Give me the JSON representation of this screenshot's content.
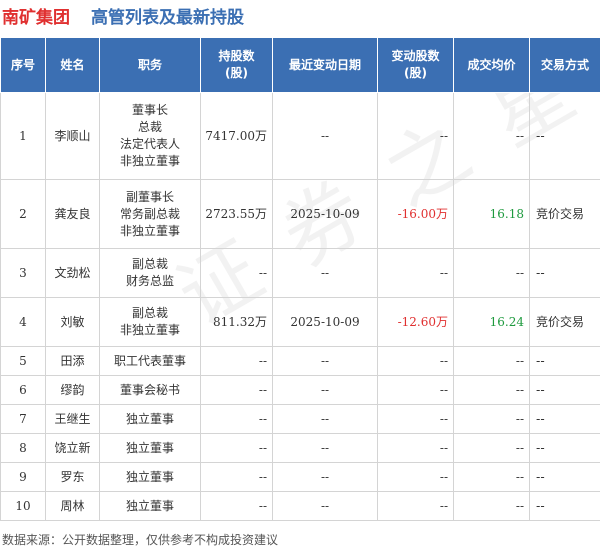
{
  "header": {
    "company": "南矿集团",
    "subtitle": "高管列表及最新持股",
    "company_color": "#e03030",
    "subtitle_color": "#3b6fb3"
  },
  "table": {
    "columns": [
      "序号",
      "姓名",
      "职务",
      "持股数\n(股)",
      "最近变动日期",
      "变动股数\n(股)",
      "成交均价",
      "交易方式"
    ],
    "rows": [
      {
        "no": "1",
        "name": "李顺山",
        "roles": [
          "董事长",
          "总裁",
          "法定代表人",
          "非独立董事"
        ],
        "shares": "7417.00万",
        "date": "--",
        "change": "--",
        "price": "--",
        "method": "--"
      },
      {
        "no": "2",
        "name": "龚友良",
        "roles": [
          "副董事长",
          "常务副总裁",
          "非独立董事"
        ],
        "shares": "2723.55万",
        "date": "2025-10-09",
        "change": "-16.00万",
        "price": "16.18",
        "method": "竞价交易"
      },
      {
        "no": "3",
        "name": "文劲松",
        "roles": [
          "副总裁",
          "财务总监"
        ],
        "shares": "--",
        "date": "--",
        "change": "--",
        "price": "--",
        "method": "--"
      },
      {
        "no": "4",
        "name": "刘敏",
        "roles": [
          "副总裁",
          "非独立董事"
        ],
        "shares": "811.32万",
        "date": "2025-10-09",
        "change": "-12.60万",
        "price": "16.24",
        "method": "竞价交易"
      },
      {
        "no": "5",
        "name": "田添",
        "roles": [
          "职工代表董事"
        ],
        "shares": "--",
        "date": "--",
        "change": "--",
        "price": "--",
        "method": "--"
      },
      {
        "no": "6",
        "name": "缪韵",
        "roles": [
          "董事会秘书"
        ],
        "shares": "--",
        "date": "--",
        "change": "--",
        "price": "--",
        "method": "--"
      },
      {
        "no": "7",
        "name": "王继生",
        "roles": [
          "独立董事"
        ],
        "shares": "--",
        "date": "--",
        "change": "--",
        "price": "--",
        "method": "--"
      },
      {
        "no": "8",
        "name": "饶立新",
        "roles": [
          "独立董事"
        ],
        "shares": "--",
        "date": "--",
        "change": "--",
        "price": "--",
        "method": "--"
      },
      {
        "no": "9",
        "name": "罗东",
        "roles": [
          "独立董事"
        ],
        "shares": "--",
        "date": "--",
        "change": "--",
        "price": "--",
        "method": "--"
      },
      {
        "no": "10",
        "name": "周林",
        "roles": [
          "独立董事"
        ],
        "shares": "--",
        "date": "--",
        "change": "--",
        "price": "--",
        "method": "--"
      }
    ]
  },
  "footer": {
    "source": "数据来源：公开数据整理，仅供参考不构成投资建议"
  },
  "watermark": "证券之星"
}
